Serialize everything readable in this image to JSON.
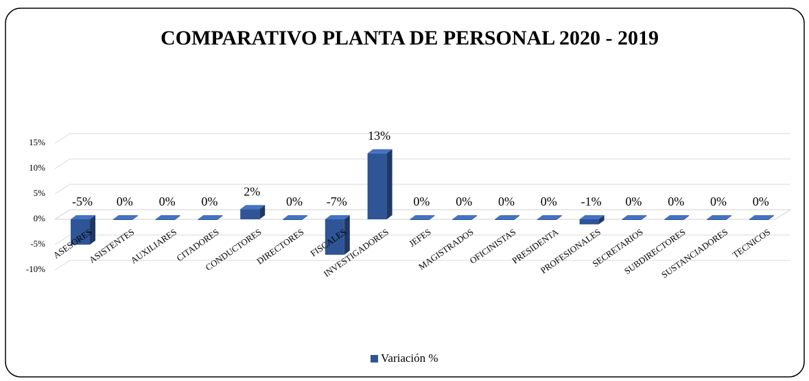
{
  "chart_data": {
    "type": "bar3d",
    "title": "COMPARATIVO PLANTA DE PERSONAL 2020 - 2019",
    "categories": [
      "ASESORES",
      "ASISTENTES",
      "AUXILIARES",
      "CITADORES",
      "CONDUCTORES",
      "DIRECTORES",
      "FISCALES",
      "INVESTIGADORES",
      "JEFES",
      "MAGISTRADOS",
      "OFICINISTAS",
      "PRESIDENTA",
      "PROFESIONALES",
      "SECRETARIOS",
      "SUBDIRECTORES",
      "SUSTANCIADORES",
      "TECNICOS"
    ],
    "series": [
      {
        "name": "Variación %",
        "color": "#2f5597",
        "values": [
          -5,
          0,
          0,
          0,
          2,
          0,
          -7,
          13,
          0,
          0,
          0,
          0,
          -1,
          0,
          0,
          0,
          0
        ],
        "value_labels": [
          "-5%",
          "0%",
          "0%",
          "0%",
          "2%",
          "0%",
          "-7%",
          "13%",
          "0%",
          "0%",
          "0%",
          "0%",
          "-1%",
          "0%",
          "0%",
          "0%",
          "0%"
        ]
      }
    ],
    "ylim": [
      -10,
      15
    ],
    "yticks": [
      {
        "value": -10,
        "label": "-10%"
      },
      {
        "value": -5,
        "label": "-5%"
      },
      {
        "value": 0,
        "label": "0%"
      },
      {
        "value": 5,
        "label": "5%"
      },
      {
        "value": 10,
        "label": "10%"
      },
      {
        "value": 15,
        "label": "15%"
      }
    ],
    "grid": true,
    "legend": "bottom"
  }
}
